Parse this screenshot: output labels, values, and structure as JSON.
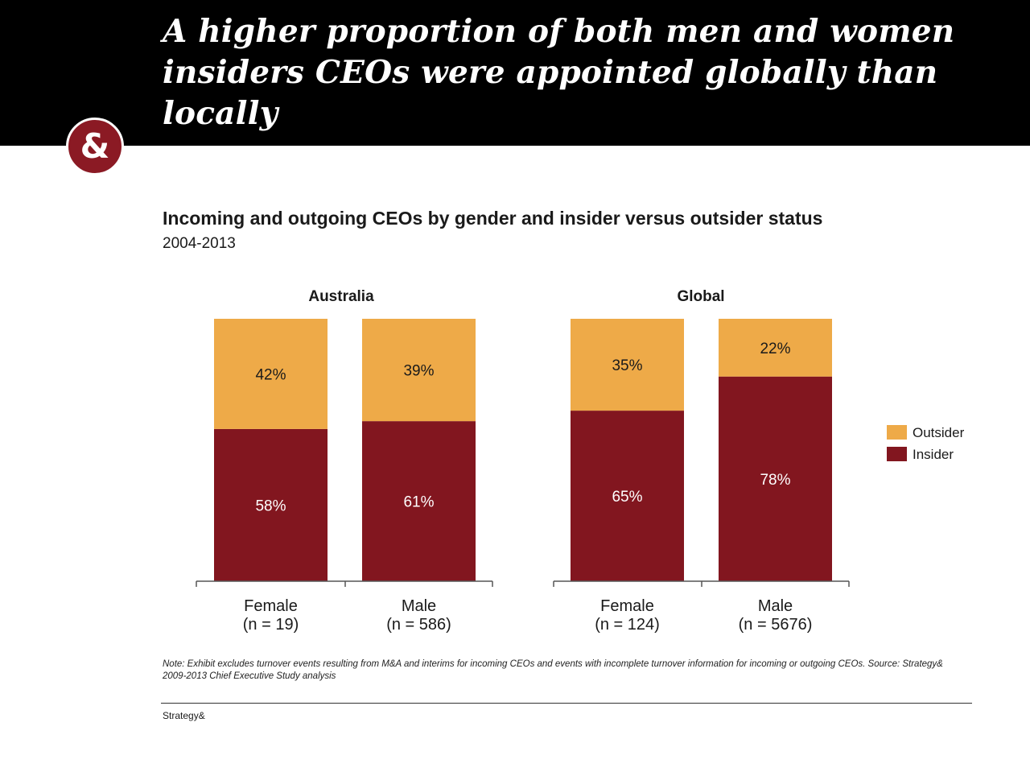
{
  "header": {
    "headline": "A higher proportion of both men and women insiders CEOs were appointed globally than locally",
    "badge_glyph": "&",
    "badge_icon": "ampersand-logo-icon"
  },
  "colors": {
    "header_bg": "#000000",
    "badge": "#8b1a24",
    "outsider": "#eeaa48",
    "insider": "#82161f"
  },
  "chart_data": {
    "type": "bar",
    "stacked": true,
    "normalized_percent": true,
    "title": "Incoming and outgoing CEOs by gender and insider versus outsider status",
    "subtitle": "2004-2013",
    "legend": {
      "placement": "right",
      "entries": [
        "Outsider",
        "Insider"
      ]
    },
    "ylim": [
      0,
      100
    ],
    "grid": false,
    "panels": [
      {
        "title": "Australia",
        "categories": [
          {
            "name": "Female",
            "n": "(n = 19)"
          },
          {
            "name": "Male",
            "n": "(n = 586)"
          }
        ],
        "series": [
          {
            "name": "Insider",
            "values": [
              58,
              61
            ],
            "labels": [
              "58%",
              "61%"
            ]
          },
          {
            "name": "Outsider",
            "values": [
              42,
              39
            ],
            "labels": [
              "42%",
              "39%"
            ]
          }
        ]
      },
      {
        "title": "Global",
        "categories": [
          {
            "name": "Female",
            "n": "(n = 124)"
          },
          {
            "name": "Male",
            "n": "(n = 5676)"
          }
        ],
        "series": [
          {
            "name": "Insider",
            "values": [
              65,
              78
            ],
            "labels": [
              "65%",
              "78%"
            ]
          },
          {
            "name": "Outsider",
            "values": [
              35,
              22
            ],
            "labels": [
              "35%",
              "22%"
            ]
          }
        ]
      }
    ]
  },
  "note": "Note: Exhibit excludes turnover events resulting from M&A and interims for incoming CEOs and events with incomplete turnover information for incoming or outgoing CEOs. Source: Strategy& 2009-2013 Chief Executive Study analysis",
  "footer": {
    "brand": "Strategy&"
  }
}
